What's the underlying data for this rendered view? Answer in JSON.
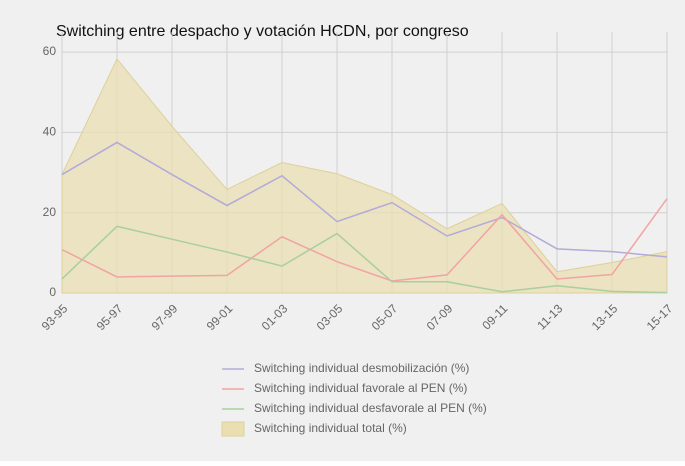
{
  "chart_data": {
    "type": "line",
    "title": "Switching entre despacho y votación HCDN, por congreso",
    "categories": [
      "93-95",
      "95-97",
      "97-99",
      "99-01",
      "01-03",
      "03-05",
      "05-07",
      "07-09",
      "09-11",
      "11-13",
      "13-15",
      "15-17"
    ],
    "series": [
      {
        "name": "Switching individual desmobilización (%)",
        "color": "#b3aad9",
        "values": [
          29.5,
          37.5,
          29.5,
          21.8,
          29.2,
          17.8,
          22.5,
          14.2,
          18.8,
          11,
          10.3,
          9
        ]
      },
      {
        "name": "Switching individual favorale al PEN (%)",
        "color": "#f2a3a3",
        "values": [
          10.8,
          4,
          4.2,
          4.4,
          14,
          7.8,
          3,
          4.5,
          19.5,
          3.5,
          4.6,
          23.5
        ]
      },
      {
        "name": "Switching individual desfavorale al PEN (%)",
        "color": "#a9cf9f",
        "values": [
          3.5,
          16.6,
          13.4,
          10.2,
          6.7,
          14.8,
          2.8,
          2.8,
          0.3,
          1.8,
          0.4,
          0.1
        ]
      },
      {
        "name": "Switching individual total (%)",
        "color": "#e9dfb1",
        "area": true,
        "values": [
          29.5,
          58.3,
          41.5,
          25.8,
          32.5,
          29.7,
          24.5,
          16,
          22.3,
          5.3,
          7.6,
          10.3
        ]
      }
    ],
    "ylim": [
      0,
      65
    ],
    "yticks": [
      0,
      20,
      40,
      60
    ],
    "grid": true
  }
}
